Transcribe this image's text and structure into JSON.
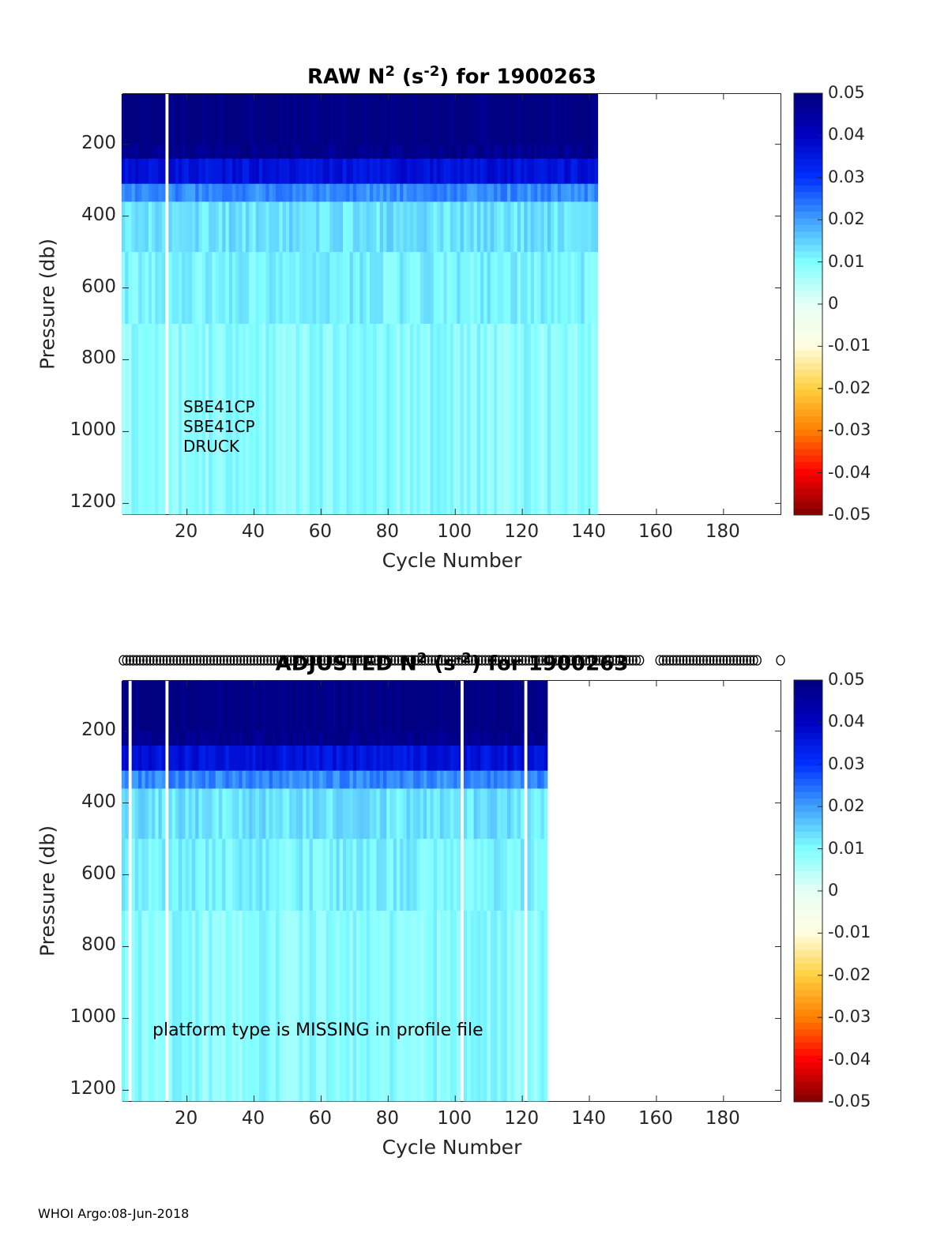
{
  "footer": "WHOI Argo:08-Jun-2018",
  "chart_data": [
    {
      "type": "heatmap",
      "title_main": "RAW N",
      "title_sup1": "2",
      "title_mid": " (s",
      "title_sup2": "-2",
      "title_end": ") for 1900263",
      "xlabel": "Cycle Number",
      "ylabel": "Pressure (db)",
      "xlim": [
        1,
        197
      ],
      "ylim": [
        60,
        1230
      ],
      "y_reversed": true,
      "xticks": [
        20,
        40,
        60,
        80,
        100,
        120,
        140,
        160,
        180
      ],
      "yticks": [
        200,
        400,
        600,
        800,
        1000,
        1200
      ],
      "clim": [
        -0.05,
        0.05
      ],
      "colorbar_ticks": [
        "0.05",
        "0.04",
        "0.03",
        "0.02",
        "0.01",
        "0",
        "-0.01",
        "-0.02",
        "-0.03",
        "-0.04",
        "-0.05"
      ],
      "data_cycle_range": [
        1,
        142
      ],
      "missing_cycles": [
        14
      ],
      "profile_bands": [
        {
          "p_top": 60,
          "p_bottom": 200,
          "n2": 0.05
        },
        {
          "p_top": 200,
          "p_bottom": 240,
          "n2": 0.048
        },
        {
          "p_top": 240,
          "p_bottom": 310,
          "n2": 0.036
        },
        {
          "p_top": 310,
          "p_bottom": 360,
          "n2": 0.022
        },
        {
          "p_top": 360,
          "p_bottom": 500,
          "n2": 0.013
        },
        {
          "p_top": 500,
          "p_bottom": 700,
          "n2": 0.011
        },
        {
          "p_top": 700,
          "p_bottom": 1230,
          "n2": 0.009
        }
      ],
      "annotations": [
        "SBE41CP",
        "SBE41CP",
        "DRUCK"
      ]
    },
    {
      "type": "heatmap",
      "title_main": "ADJUSTED N",
      "title_sup1": "2",
      "title_mid": " (s",
      "title_sup2": "-2",
      "title_end": ") for 1900263",
      "xlabel": "Cycle Number",
      "ylabel": "Pressure (db)",
      "xlim": [
        1,
        197
      ],
      "ylim": [
        60,
        1230
      ],
      "y_reversed": true,
      "xticks": [
        20,
        40,
        60,
        80,
        100,
        120,
        140,
        160,
        180
      ],
      "yticks": [
        200,
        400,
        600,
        800,
        1000,
        1200
      ],
      "clim": [
        -0.05,
        0.05
      ],
      "colorbar_ticks": [
        "0.05",
        "0.04",
        "0.03",
        "0.02",
        "0.01",
        "0",
        "-0.01",
        "-0.02",
        "-0.03",
        "-0.04",
        "-0.05"
      ],
      "data_cycle_range": [
        1,
        127
      ],
      "missing_cycles": [
        3,
        14,
        102,
        121
      ],
      "marker_cycles_ranges": [
        [
          1,
          155
        ],
        [
          161,
          190
        ]
      ],
      "marker_single": 197,
      "marker_symbol": "o",
      "profile_bands": [
        {
          "p_top": 60,
          "p_bottom": 200,
          "n2": 0.05
        },
        {
          "p_top": 200,
          "p_bottom": 240,
          "n2": 0.048
        },
        {
          "p_top": 240,
          "p_bottom": 310,
          "n2": 0.036
        },
        {
          "p_top": 310,
          "p_bottom": 360,
          "n2": 0.022
        },
        {
          "p_top": 360,
          "p_bottom": 500,
          "n2": 0.013
        },
        {
          "p_top": 500,
          "p_bottom": 700,
          "n2": 0.011
        },
        {
          "p_top": 700,
          "p_bottom": 1230,
          "n2": 0.009
        }
      ],
      "annotations": [
        "platform type is MISSING in profile file"
      ]
    }
  ],
  "colormap": [
    "#800000",
    "#ff0000",
    "#ff8000",
    "#ffd040",
    "#fffde0",
    "#e6fff6",
    "#80ffff",
    "#40a0ff",
    "#0030ff",
    "#0000c0",
    "#000080"
  ]
}
